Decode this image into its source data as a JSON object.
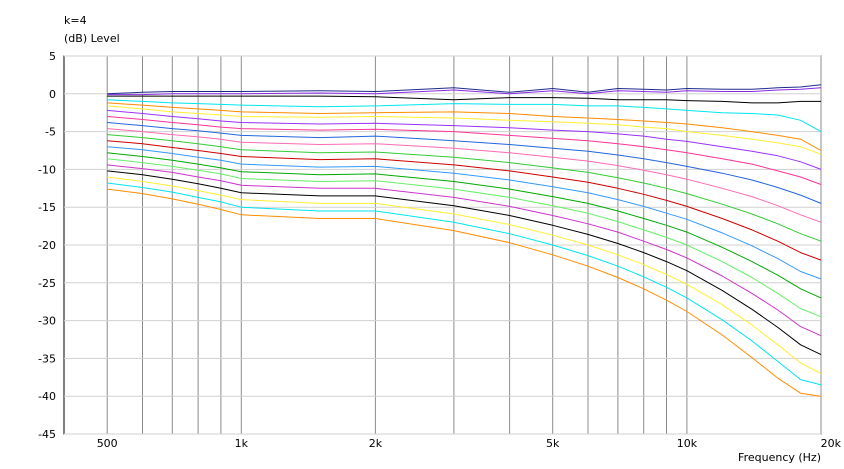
{
  "chart_data": {
    "type": "line",
    "title": "k=4",
    "ylabel": "(dB)  Level",
    "xlabel": "Frequency  (Hz)",
    "x_scale": "log",
    "xlim": [
      400,
      20000
    ],
    "ylim": [
      -45,
      5
    ],
    "grid": true,
    "y_ticks": [
      5,
      0,
      -5,
      -10,
      -15,
      -20,
      -25,
      -30,
      -35,
      -40,
      -45
    ],
    "x_ticks": [
      {
        "label": "500",
        "value": 500
      },
      {
        "label": "1k",
        "value": 1000
      },
      {
        "label": "2k",
        "value": 2000
      },
      {
        "label": "5k",
        "value": 5000
      },
      {
        "label": "10k",
        "value": 10000
      },
      {
        "label": "20k",
        "value": 20000
      }
    ],
    "x_gridlines": [
      500,
      600,
      700,
      800,
      900,
      1000,
      2000,
      3000,
      4000,
      5000,
      6000,
      7000,
      8000,
      9000,
      10000,
      20000
    ],
    "x": [
      500,
      600,
      700,
      800,
      900,
      1000,
      1500,
      2000,
      3000,
      4000,
      5000,
      6000,
      7000,
      8000,
      9000,
      10000,
      12000,
      14000,
      16000,
      18000,
      20000
    ],
    "series": [
      {
        "color": "#1f2a8c",
        "values": [
          0,
          0.2,
          0.3,
          0.3,
          0.3,
          0.3,
          0.4,
          0.3,
          0.8,
          0.2,
          0.7,
          0.2,
          0.7,
          0.6,
          0.5,
          0.7,
          0.6,
          0.6,
          0.8,
          0.9,
          1.2
        ]
      },
      {
        "color": "#8a2be2",
        "values": [
          -0.1,
          -0.1,
          0,
          0,
          0,
          0,
          0.1,
          0,
          0.5,
          0,
          0.4,
          0,
          0.4,
          0.3,
          0.2,
          0.4,
          0.3,
          0.3,
          0.5,
          0.6,
          0.8
        ]
      },
      {
        "color": "#000000",
        "values": [
          -0.3,
          -0.3,
          -0.3,
          -0.3,
          -0.3,
          -0.3,
          -0.3,
          -0.4,
          -0.8,
          -0.5,
          -0.5,
          -0.6,
          -0.8,
          -0.8,
          -0.8,
          -0.9,
          -1.0,
          -1.2,
          -1.2,
          -1.0,
          -1.0
        ]
      },
      {
        "color": "#00e5ee",
        "values": [
          -0.8,
          -1.0,
          -1.2,
          -1.3,
          -1.4,
          -1.5,
          -1.7,
          -1.6,
          -1.3,
          -1.4,
          -1.4,
          -1.6,
          -1.6,
          -1.8,
          -2.0,
          -2.2,
          -2.5,
          -2.6,
          -2.8,
          -3.5,
          -5.0
        ]
      },
      {
        "color": "#ff8c00",
        "values": [
          -1.2,
          -1.5,
          -1.8,
          -2.0,
          -2.2,
          -2.4,
          -2.6,
          -2.5,
          -2.4,
          -2.6,
          -3.0,
          -3.2,
          -3.4,
          -3.6,
          -3.8,
          -4.0,
          -4.5,
          -5.0,
          -5.5,
          -6.0,
          -7.5
        ]
      },
      {
        "color": "#ffee33",
        "values": [
          -1.6,
          -2.0,
          -2.4,
          -2.6,
          -2.8,
          -3.0,
          -3.1,
          -3.0,
          -3.2,
          -3.5,
          -3.7,
          -3.9,
          -4.1,
          -4.4,
          -4.6,
          -5.0,
          -5.5,
          -6.0,
          -6.5,
          -7.0,
          -8.0
        ]
      },
      {
        "color": "#9b30ff",
        "values": [
          -2.2,
          -2.6,
          -3.0,
          -3.3,
          -3.6,
          -3.8,
          -4.0,
          -3.9,
          -4.2,
          -4.5,
          -4.8,
          -5.0,
          -5.3,
          -5.6,
          -6.0,
          -6.3,
          -7.0,
          -7.6,
          -8.2,
          -9.0,
          -10.0
        ]
      },
      {
        "color": "#ff3399",
        "values": [
          -3.0,
          -3.4,
          -3.8,
          -4.1,
          -4.4,
          -4.6,
          -4.8,
          -4.7,
          -5.0,
          -5.5,
          -5.9,
          -6.2,
          -6.6,
          -7.0,
          -7.4,
          -7.8,
          -8.6,
          -9.3,
          -10.2,
          -11.0,
          -12.0
        ]
      },
      {
        "color": "#2266dd",
        "values": [
          -3.8,
          -4.2,
          -4.6,
          -4.9,
          -5.2,
          -5.5,
          -5.8,
          -5.6,
          -6.2,
          -6.7,
          -7.2,
          -7.6,
          -8.1,
          -8.6,
          -9.1,
          -9.6,
          -10.5,
          -11.4,
          -12.4,
          -13.4,
          -14.5
        ]
      },
      {
        "color": "#ff69b4",
        "values": [
          -4.6,
          -5.0,
          -5.4,
          -5.7,
          -6.0,
          -6.4,
          -6.7,
          -6.6,
          -7.2,
          -7.8,
          -8.4,
          -8.9,
          -9.5,
          -10.1,
          -10.7,
          -11.3,
          -12.5,
          -13.6,
          -14.8,
          -16.0,
          -17.0
        ]
      },
      {
        "color": "#33cc33",
        "values": [
          -5.4,
          -5.8,
          -6.2,
          -6.6,
          -7.0,
          -7.4,
          -7.8,
          -7.7,
          -8.4,
          -9.1,
          -9.8,
          -10.4,
          -11.1,
          -11.8,
          -12.5,
          -13.2,
          -14.6,
          -15.9,
          -17.2,
          -18.5,
          -19.5
        ]
      },
      {
        "color": "#cc0000",
        "values": [
          -6.2,
          -6.6,
          -7.1,
          -7.5,
          -7.9,
          -8.3,
          -8.7,
          -8.6,
          -9.4,
          -10.2,
          -11.0,
          -11.7,
          -12.5,
          -13.3,
          -14.1,
          -14.9,
          -16.5,
          -18.0,
          -19.5,
          -21.0,
          -22.0
        ]
      },
      {
        "color": "#3399ff",
        "values": [
          -7.0,
          -7.4,
          -7.9,
          -8.4,
          -8.8,
          -9.3,
          -9.7,
          -9.6,
          -10.5,
          -11.4,
          -12.3,
          -13.1,
          -14.0,
          -14.9,
          -15.8,
          -16.6,
          -18.4,
          -20.1,
          -21.8,
          -23.5,
          -24.5
        ]
      },
      {
        "color": "#00aa00",
        "values": [
          -7.8,
          -8.3,
          -8.8,
          -9.3,
          -9.8,
          -10.3,
          -10.7,
          -10.6,
          -11.6,
          -12.6,
          -13.6,
          -14.5,
          -15.5,
          -16.5,
          -17.4,
          -18.3,
          -20.3,
          -22.2,
          -24.0,
          -25.8,
          -27.0
        ]
      },
      {
        "color": "#66ee66",
        "values": [
          -8.6,
          -9.1,
          -9.6,
          -10.1,
          -10.6,
          -11.2,
          -11.6,
          -11.5,
          -12.6,
          -13.7,
          -14.8,
          -15.8,
          -16.9,
          -18.0,
          -19.0,
          -20.0,
          -22.2,
          -24.3,
          -26.4,
          -28.4,
          -29.5
        ]
      },
      {
        "color": "#cc33cc",
        "values": [
          -9.4,
          -9.9,
          -10.4,
          -11.0,
          -11.5,
          -12.1,
          -12.5,
          -12.5,
          -13.7,
          -14.9,
          -16.1,
          -17.2,
          -18.3,
          -19.5,
          -20.6,
          -21.7,
          -24.1,
          -26.4,
          -28.6,
          -30.8,
          -32.0
        ]
      },
      {
        "color": "#000000",
        "values": [
          -10.2,
          -10.7,
          -11.3,
          -11.9,
          -12.5,
          -13.1,
          -13.5,
          -13.5,
          -14.8,
          -16.1,
          -17.4,
          -18.6,
          -19.8,
          -21.0,
          -22.2,
          -23.4,
          -26.0,
          -28.5,
          -30.9,
          -33.2,
          -34.5
        ]
      },
      {
        "color": "#ffee33",
        "values": [
          -11.0,
          -11.6,
          -12.2,
          -12.8,
          -13.4,
          -14.0,
          -14.5,
          -14.5,
          -15.9,
          -17.3,
          -18.7,
          -20.0,
          -21.3,
          -22.6,
          -23.9,
          -25.2,
          -27.9,
          -30.6,
          -33.2,
          -35.6,
          -37.0
        ]
      },
      {
        "color": "#00e5ee",
        "values": [
          -11.8,
          -12.4,
          -13.0,
          -13.7,
          -14.3,
          -15.0,
          -15.5,
          -15.5,
          -17.0,
          -18.5,
          -20.0,
          -21.4,
          -22.8,
          -24.2,
          -25.6,
          -27.0,
          -29.9,
          -32.7,
          -35.4,
          -37.8,
          -38.5
        ]
      },
      {
        "color": "#ff8c00",
        "values": [
          -12.6,
          -13.2,
          -13.9,
          -14.6,
          -15.3,
          -16.0,
          -16.5,
          -16.5,
          -18.1,
          -19.7,
          -21.3,
          -22.8,
          -24.3,
          -25.8,
          -27.3,
          -28.8,
          -31.9,
          -34.9,
          -37.6,
          -39.6,
          -40.0
        ]
      }
    ]
  }
}
